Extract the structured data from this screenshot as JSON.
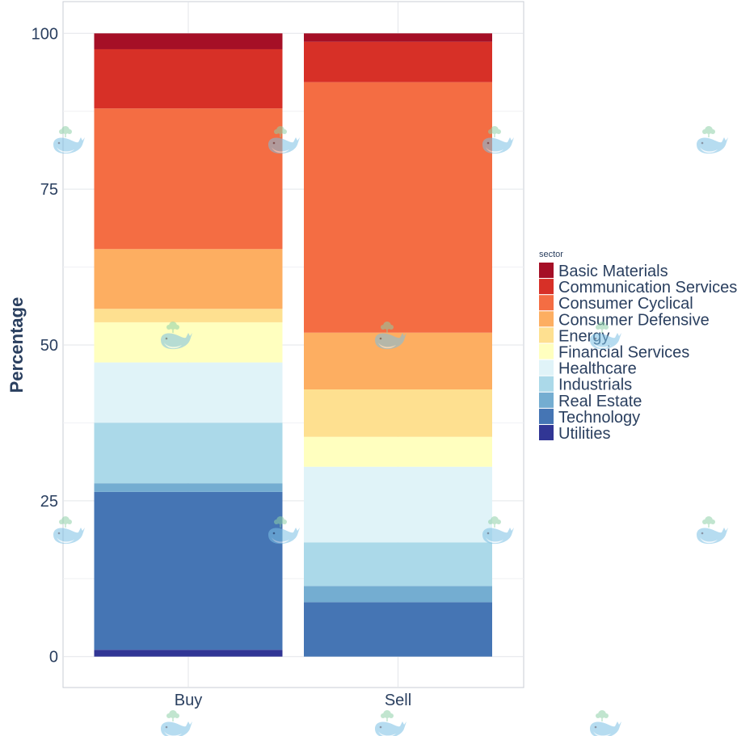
{
  "chart_data": {
    "type": "bar",
    "stacked": true,
    "title": "",
    "xlabel": "",
    "ylabel": "Percentage",
    "ylim": [
      -5,
      105
    ],
    "yticks": [
      0,
      25,
      50,
      75,
      100
    ],
    "ytick_labels": [
      "0",
      "25",
      "50",
      "75",
      "100"
    ],
    "grid": true,
    "categories": [
      "Buy",
      "Sell"
    ],
    "legend": {
      "title": "sector",
      "position": "right"
    },
    "series": [
      {
        "name": "Basic Materials",
        "color": "#a50f26",
        "values": [
          2.55,
          1.35
        ]
      },
      {
        "name": "Communication Services",
        "color": "#d73027",
        "values": [
          9.5,
          6.48
        ]
      },
      {
        "name": "Consumer Cyclical",
        "color": "#f46d43",
        "values": [
          22.56,
          40.19
        ]
      },
      {
        "name": "Consumer Defensive",
        "color": "#fdae61",
        "values": [
          9.59,
          9.11
        ]
      },
      {
        "name": "Energy",
        "color": "#fee090",
        "values": [
          2.16,
          7.61
        ]
      },
      {
        "name": "Financial Services",
        "color": "#ffffbf",
        "values": [
          6.44,
          4.8
        ]
      },
      {
        "name": "Healthcare",
        "color": "#e0f3f8",
        "values": [
          9.67,
          12.13
        ]
      },
      {
        "name": "Industrials",
        "color": "#abd9e9",
        "values": [
          9.72,
          7.0
        ]
      },
      {
        "name": "Real Estate",
        "color": "#74add1",
        "values": [
          1.39,
          2.59
        ]
      },
      {
        "name": "Technology",
        "color": "#4575b4",
        "values": [
          25.33,
          8.74
        ]
      },
      {
        "name": "Utilities",
        "color": "#313695",
        "values": [
          1.09,
          0
        ]
      }
    ]
  },
  "watermark": {
    "icon": "whale-icon"
  }
}
